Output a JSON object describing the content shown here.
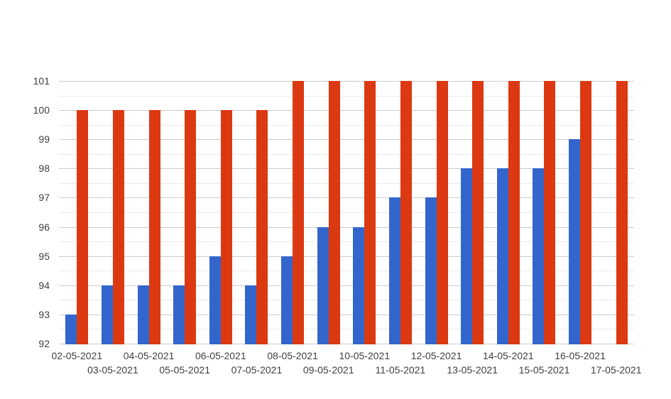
{
  "page": {
    "background": "#ffffff"
  },
  "chart_data": {
    "type": "bar",
    "title": "",
    "legend": "none",
    "categories": [
      "02-05-2021",
      "03-05-2021",
      "04-05-2021",
      "05-05-2021",
      "06-05-2021",
      "07-05-2021",
      "08-05-2021",
      "09-05-2021",
      "10-05-2021",
      "11-05-2021",
      "12-05-2021",
      "13-05-2021",
      "14-05-2021",
      "15-05-2021",
      "16-05-2021",
      "17-05-2021"
    ],
    "series": [
      {
        "name": "blue",
        "color": "#3366cc",
        "values": [
          93,
          94,
          94,
          94,
          95,
          94,
          95,
          96,
          96,
          97,
          97,
          98,
          98,
          98,
          99,
          null
        ]
      },
      {
        "name": "red",
        "color": "#dc3912",
        "values": [
          100,
          100,
          100,
          100,
          100,
          100,
          101,
          101,
          101,
          101,
          101,
          101,
          101,
          101,
          101,
          101
        ]
      }
    ],
    "y_axis": {
      "min": 92,
      "max": 101,
      "tick_step": 1,
      "minor_tick_step": 0.5,
      "tick_labels": [
        "92",
        "93",
        "94",
        "95",
        "96",
        "97",
        "98",
        "99",
        "100",
        "101"
      ]
    },
    "x_axis": {
      "staggered_labels": true
    },
    "grid": {
      "show": true,
      "major_color": "#cccccc",
      "minor_color": "#ebebeb"
    },
    "text_color": "#404040"
  }
}
